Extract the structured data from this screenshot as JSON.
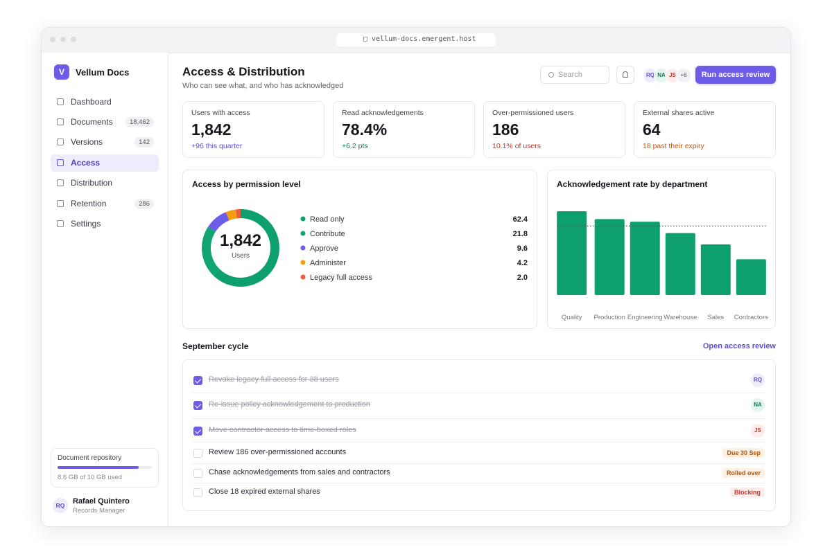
{
  "browser": {
    "url": "vellum-docs.emergent.host"
  },
  "sidebar": {
    "logo": "V",
    "brand": "Vellum Docs",
    "nav": [
      {
        "label": "Dashboard"
      },
      {
        "label": "Documents",
        "badge": "18,462"
      },
      {
        "label": "Versions",
        "badge": "142"
      },
      {
        "label": "Access",
        "active": true
      },
      {
        "label": "Distribution"
      },
      {
        "label": "Retention",
        "badge": "286"
      },
      {
        "label": "Settings"
      }
    ],
    "storage": {
      "title": "Document repository",
      "used": 8.6,
      "total": 10,
      "label": "8.6 GB of 10 GB used",
      "color": "#6c5ce7"
    },
    "user": {
      "initials": "RQ",
      "name": "Rafael Quintero",
      "role": "Records Manager"
    }
  },
  "header": {
    "title": "Access & Distribution",
    "subtitle": "Who can see what, and who has acknowledged",
    "search": "Search",
    "avatars": [
      {
        "initials": "RQ",
        "color": "#5b4fd6",
        "bg": "#eeebfd"
      },
      {
        "initials": "NA",
        "color": "#0e7a55",
        "bg": "#e3f5ec"
      },
      {
        "initials": "JS",
        "color": "#c0392b",
        "bg": "#fdecea"
      }
    ],
    "more": "+6",
    "button": "Run access review"
  },
  "kpis": [
    {
      "label": "Users with access",
      "value": "1,842",
      "delta": "+96 this quarter",
      "color": "#5b4fd6"
    },
    {
      "label": "Read acknowledgements",
      "value": "78.4%",
      "delta": "+6.2 pts",
      "color": "#0e7a55"
    },
    {
      "label": "Over-permissioned users",
      "value": "186",
      "delta": "10.1% of users",
      "color": "#c0392b"
    },
    {
      "label": "External shares active",
      "value": "64",
      "delta": "18 past their expiry",
      "color": "#c2570c"
    }
  ],
  "chart_data": [
    {
      "type": "pie",
      "title": "Access by permission level",
      "center_value": "1,842",
      "center_label": "Users",
      "categories": [
        "Read only",
        "Contribute",
        "Approve",
        "Administer",
        "Legacy full access"
      ],
      "values": [
        62.4,
        21.8,
        9.6,
        4.2,
        2.0
      ],
      "value_labels": [
        "62.4",
        "21.8",
        "9.6",
        "4.2",
        "2.0"
      ],
      "colors": [
        "#0e9f6e",
        "#12a574",
        "#6c5ce7",
        "#f59e0b",
        "#ef5a3c"
      ]
    },
    {
      "type": "bar",
      "title": "Acknowledgement rate by department",
      "categories": [
        "Quality",
        "Production",
        "Engineering",
        "Warehouse",
        "Sales",
        "Contractors"
      ],
      "values": [
        96,
        87,
        84,
        71,
        58,
        41
      ],
      "color": "#0e9f6e",
      "ylim": [
        0,
        100
      ],
      "target": 79
    }
  ],
  "tasks": {
    "title": "September cycle",
    "link": "Open access review",
    "items": [
      {
        "text": "Revoke legacy full access for 38 users",
        "done": true,
        "assignee": "RQ",
        "assignee_color": "#5b4fd6",
        "assignee_bg": "#eeebfd"
      },
      {
        "text": "Re-issue policy acknowledgement to production",
        "done": true,
        "assignee": "NA",
        "assignee_color": "#0e7a55",
        "assignee_bg": "#e3f5ec"
      },
      {
        "text": "Move contractor access to time-boxed roles",
        "done": true,
        "assignee": "JS",
        "assignee_color": "#c0392b",
        "assignee_bg": "#fdecea"
      },
      {
        "text": "Review 186 over-permissioned accounts",
        "done": false,
        "tag": "Due 30 Sep",
        "tag_color": "#b45309",
        "tag_bg": "#fdf1e3"
      },
      {
        "text": "Chase acknowledgements from sales and contractors",
        "done": false,
        "tag": "Rolled over",
        "tag_color": "#b45309",
        "tag_bg": "#fdf1e3"
      },
      {
        "text": "Close 18 expired external shares",
        "done": false,
        "tag": "Blocking",
        "tag_color": "#c0392b",
        "tag_bg": "#fdecea"
      }
    ]
  }
}
